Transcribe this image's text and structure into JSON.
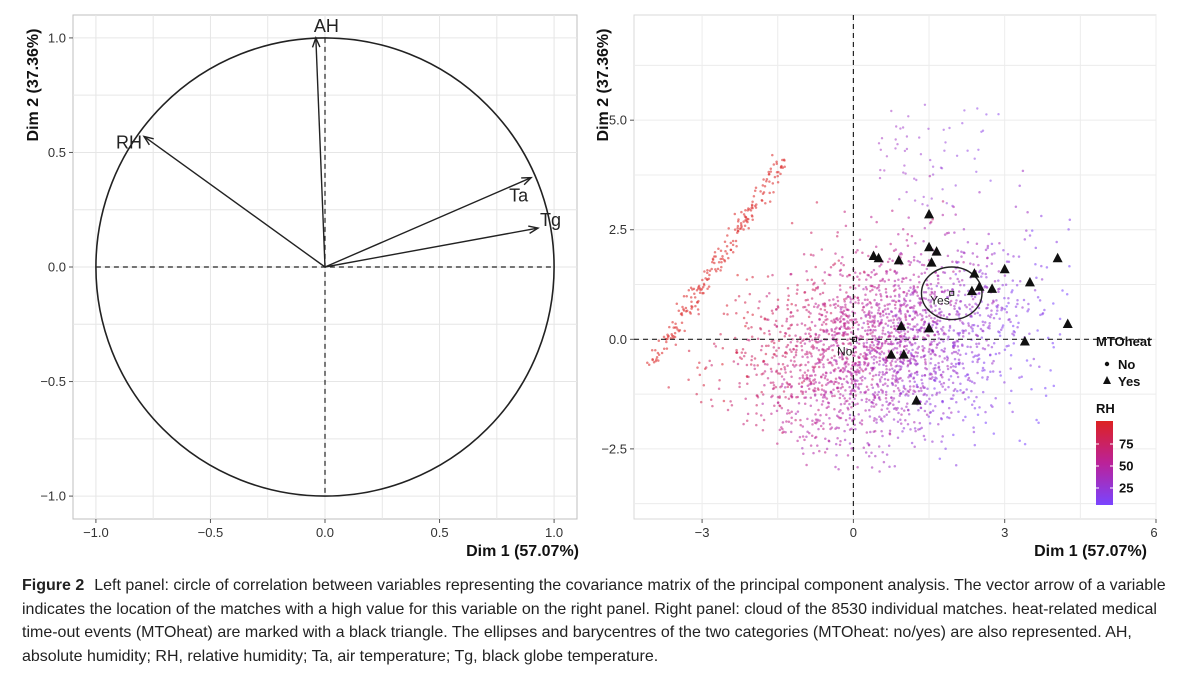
{
  "caption": {
    "label": "Figure 2",
    "text": "Left panel: circle of correlation between variables representing the covariance matrix of the principal component analysis. The vector arrow of a variable indicates the location of the matches with a high value for this variable on the right panel. Right panel: cloud of the 8530 individual matches. heat-related medical time-out events (MTOheat) are marked with a black triangle. The ellipses and barycentres of the two categories (MTOheat: no/yes) are also represented. AH, absolute humidity; RH, relative humidity; Ta, air temperature; Tg, black globe temperature."
  },
  "colors": {
    "rh_high": "#dd2222",
    "rh_mid": "#bb2299",
    "rh_low": "#8844ff",
    "grid": "#e6e6e6",
    "ink": "#111111"
  },
  "chart_data": [
    {
      "type": "scatter",
      "subtype": "pca-correlation-circle",
      "xlabel": "Dim 1 (57.07%)",
      "ylabel": "Dim 2 (37.36%)",
      "xlim": [
        -1.1,
        1.1
      ],
      "ylim": [
        -1.1,
        1.1
      ],
      "xticks": [
        -1.0,
        -0.5,
        0.0,
        0.5,
        1.0
      ],
      "xtick_labels": [
        "−1.0",
        "−0.5",
        "0.0",
        "0.5",
        "1.0"
      ],
      "yticks": [
        -1.0,
        -0.5,
        0.0,
        0.5,
        1.0
      ],
      "ytick_labels": [
        "−1.0",
        "−0.5",
        "0.0",
        "0.5",
        "1.0"
      ],
      "grid": true,
      "vectors": [
        {
          "name": "AH",
          "x": -0.04,
          "y": 1.0
        },
        {
          "name": "RH",
          "x": -0.79,
          "y": 0.57
        },
        {
          "name": "Ta",
          "x": 0.9,
          "y": 0.39
        },
        {
          "name": "Tg",
          "x": 0.93,
          "y": 0.17
        }
      ]
    },
    {
      "type": "scatter",
      "subtype": "pca-individuals",
      "xlabel": "Dim 1 (57.07%)",
      "ylabel": "Dim 2 (37.36%)",
      "xlim": [
        -4.35,
        6.0
      ],
      "ylim": [
        -4.1,
        7.4
      ],
      "xticks": [
        -3,
        0,
        3,
        6
      ],
      "xtick_labels": [
        "−3",
        "0",
        "3",
        "6"
      ],
      "yticks": [
        -2.5,
        0.0,
        2.5,
        5.0
      ],
      "ytick_labels": [
        "−2.5",
        "0.0",
        "2.5",
        "5.0"
      ],
      "grid": true,
      "legend": {
        "placement": "right",
        "shape_title": "MTOheat",
        "shape_entries": [
          "No",
          "Yes"
        ],
        "color_title": "RH",
        "color_ticks": [
          75,
          50,
          25
        ]
      },
      "barycentres": [
        {
          "name": "No",
          "x": 0.02,
          "y": 0.0
        },
        {
          "name": "Yes",
          "x": 1.95,
          "y": 1.05,
          "ellipse_rx": 0.6,
          "ellipse_ry": 0.6
        }
      ],
      "yes_points": [
        [
          1.5,
          2.85
        ],
        [
          0.4,
          1.9
        ],
        [
          0.5,
          1.85
        ],
        [
          0.9,
          1.8
        ],
        [
          1.5,
          2.1
        ],
        [
          1.65,
          2.0
        ],
        [
          1.55,
          1.75
        ],
        [
          2.4,
          1.5
        ],
        [
          2.5,
          1.2
        ],
        [
          2.75,
          1.15
        ],
        [
          2.35,
          1.1
        ],
        [
          3.0,
          1.6
        ],
        [
          3.5,
          1.3
        ],
        [
          4.05,
          1.85
        ],
        [
          4.25,
          0.35
        ],
        [
          3.4,
          -0.05
        ],
        [
          0.95,
          0.3
        ],
        [
          1.5,
          0.25
        ],
        [
          0.75,
          -0.35
        ],
        [
          1.0,
          -0.35
        ],
        [
          1.25,
          -1.4
        ]
      ]
    }
  ]
}
